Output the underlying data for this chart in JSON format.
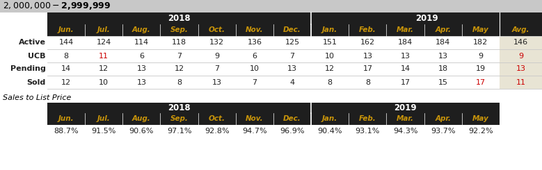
{
  "title": "$2,000,000 - $2,999,999",
  "title_bg": "#c8c8c8",
  "header_bg": "#1e1e1e",
  "month_text_color": "#c8940a",
  "avg_col_bg": "#e8e4d4",
  "row_labels": [
    "Active",
    "UCB",
    "Pending",
    "Sold"
  ],
  "months": [
    "Jun.",
    "Jul.",
    "Aug.",
    "Sep.",
    "Oct.",
    "Nov.",
    "Dec.",
    "Jan.",
    "Feb.",
    "Mar.",
    "Apr.",
    "May"
  ],
  "avg_label": "Avg.",
  "data": {
    "Active": [
      144,
      124,
      114,
      118,
      132,
      136,
      125,
      151,
      162,
      184,
      184,
      182,
      146
    ],
    "UCB": [
      8,
      11,
      6,
      7,
      9,
      6,
      7,
      10,
      13,
      13,
      13,
      9,
      9
    ],
    "Pending": [
      14,
      12,
      13,
      12,
      7,
      10,
      13,
      12,
      17,
      14,
      18,
      19,
      13
    ],
    "Sold": [
      12,
      10,
      13,
      8,
      13,
      7,
      4,
      8,
      8,
      17,
      15,
      17,
      11
    ]
  },
  "red_cells": {
    "Active": [],
    "UCB": [
      1,
      12
    ],
    "Pending": [
      12
    ],
    "Sold": [
      11,
      12
    ]
  },
  "sales_to_list_label": "Sales to List Price",
  "sales_data": [
    "88.7%",
    "91.5%",
    "90.6%",
    "97.1%",
    "92.8%",
    "94.7%",
    "96.9%",
    "90.4%",
    "93.1%",
    "94.3%",
    "93.7%",
    "92.2%"
  ],
  "data_text_color": "#222222",
  "red_text_color": "#cc0000",
  "white": "#ffffff",
  "black": "#000000"
}
